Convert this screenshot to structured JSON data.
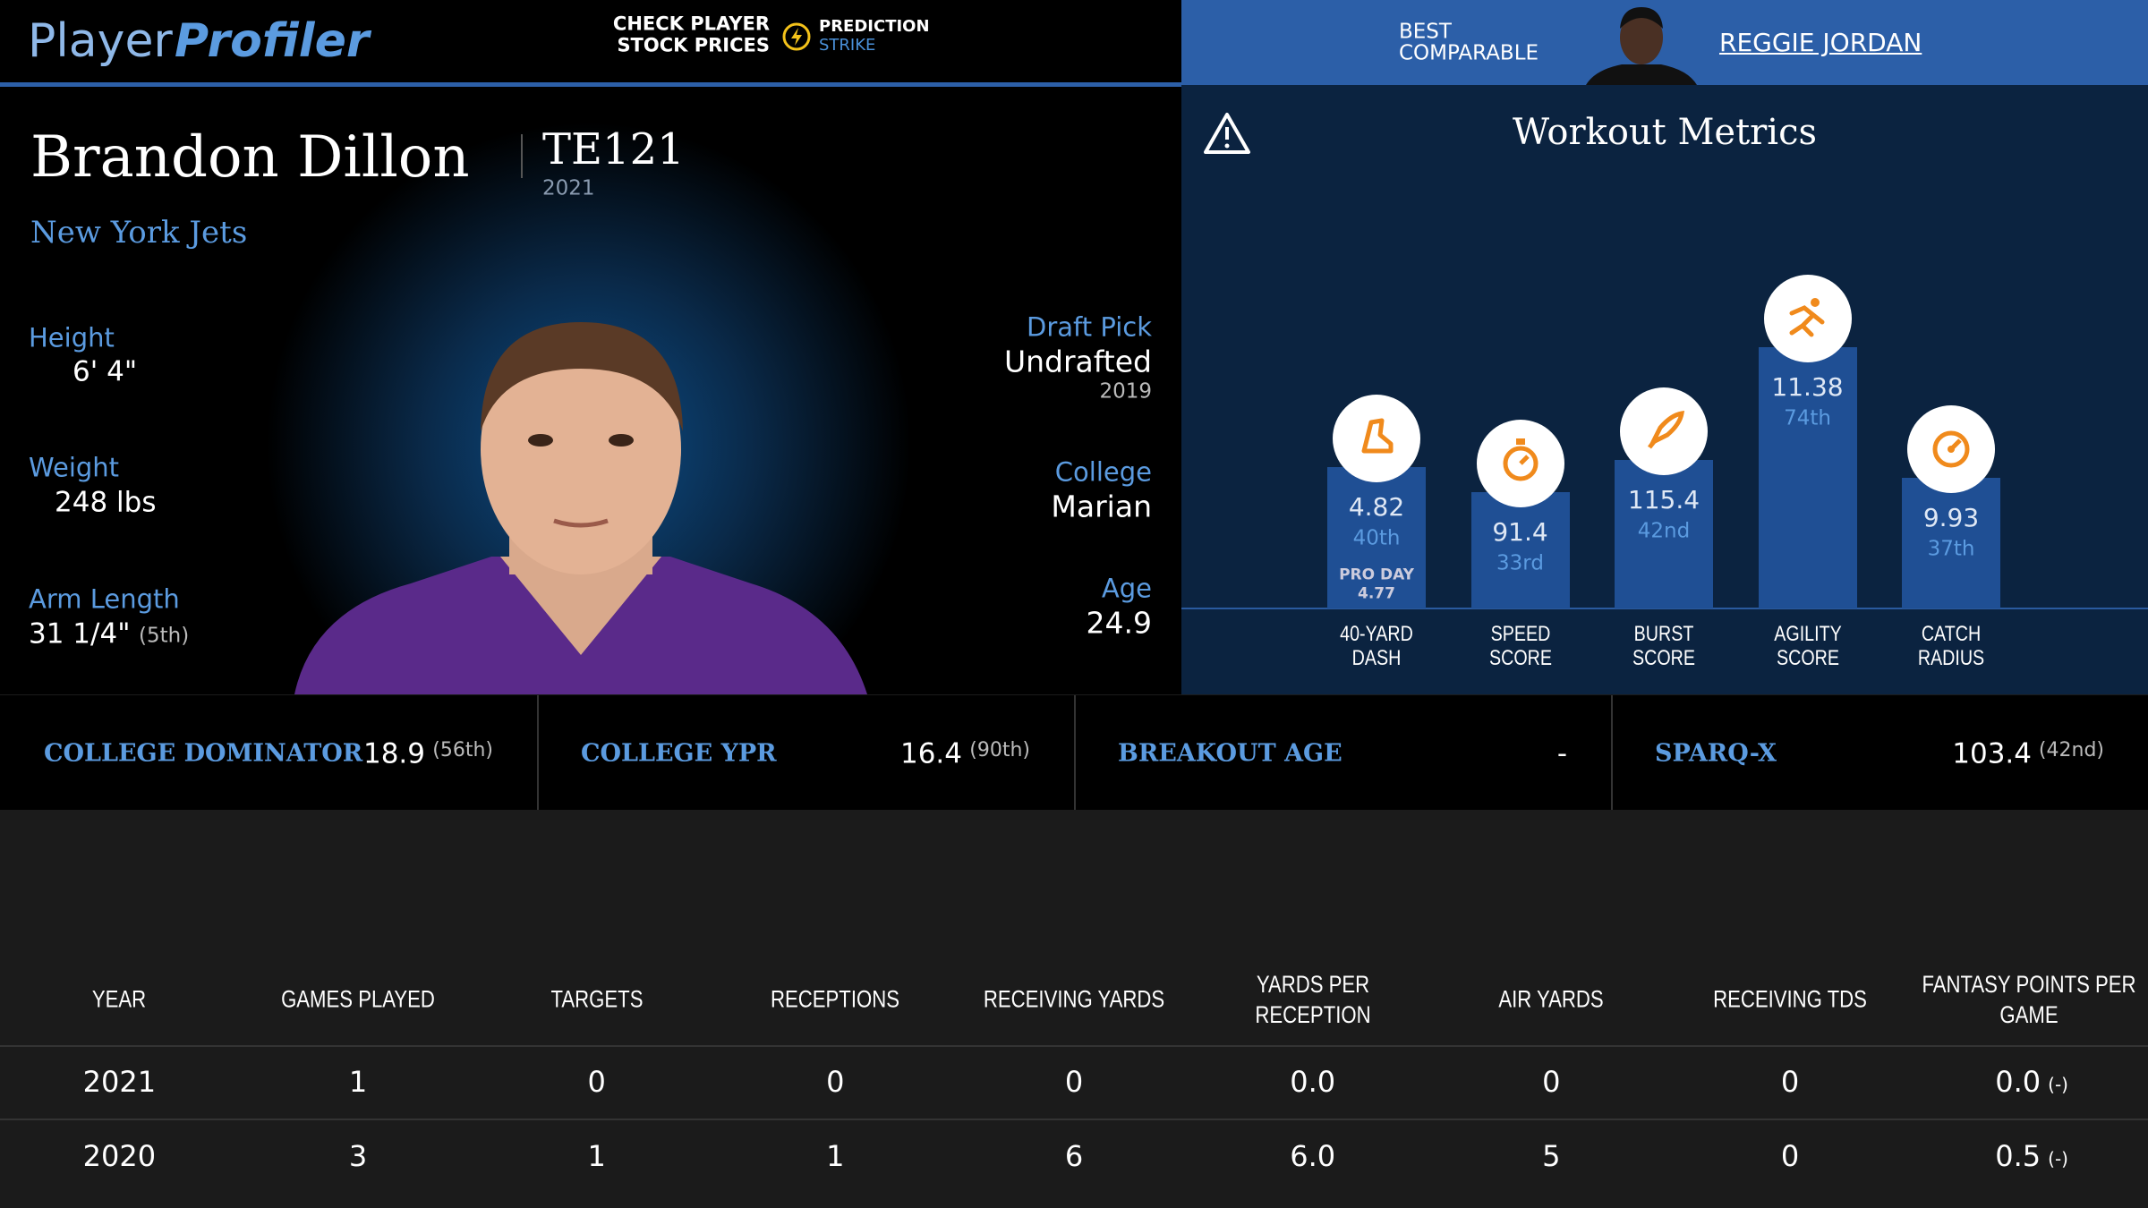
{
  "header": {
    "logo_player": "Player",
    "logo_profiler": "Profiler",
    "promo_line1": "CHECK PLAYER",
    "promo_line2": "STOCK PRICES",
    "promo_brand": "PREDICTION",
    "promo_sub": "STRIKE",
    "comparable_label_1": "BEST",
    "comparable_label_2": "COMPARABLE",
    "comparable_name": "REGGIE JORDAN"
  },
  "player": {
    "name": "Brandon Dillon",
    "position_rank": "TE121",
    "year": "2021",
    "team": "New York Jets",
    "bio_left": [
      {
        "label": "Height",
        "value": "6' 4\""
      },
      {
        "label": "Weight",
        "value": "248 lbs"
      },
      {
        "label": "Arm Length",
        "value": "31 1/4\"",
        "note": "(5th)"
      }
    ],
    "bio_right": [
      {
        "label": "Draft Pick",
        "value": "Undrafted",
        "note": "2019"
      },
      {
        "label": "College",
        "value": "Marian"
      },
      {
        "label": "Age",
        "value": "24.9"
      }
    ]
  },
  "workout": {
    "title": "Workout Metrics",
    "metrics": [
      {
        "name_1": "40-YARD",
        "name_2": "DASH",
        "value": "4.82",
        "rank": {
          "value": 40,
          "label": "40th"
        },
        "extra_label": "PRO DAY",
        "extra_value": "4.77"
      },
      {
        "name_1": "SPEED",
        "name_2": "SCORE",
        "value": "91.4",
        "rank": {
          "value": 33,
          "label": "33rd"
        }
      },
      {
        "name_1": "BURST",
        "name_2": "SCORE",
        "value": "115.4",
        "rank": {
          "value": 42,
          "label": "42nd"
        }
      },
      {
        "name_1": "AGILITY",
        "name_2": "SCORE",
        "value": "11.38",
        "rank": {
          "value": 74,
          "label": "74th"
        }
      },
      {
        "name_1": "CATCH",
        "name_2": "RADIUS",
        "value": "9.93",
        "rank": {
          "value": 37,
          "label": "37th"
        }
      }
    ]
  },
  "stats": [
    {
      "label": "COLLEGE DOMINATOR",
      "value": "18.9",
      "rank": "(56th)"
    },
    {
      "label": "COLLEGE YPR",
      "value": "16.4",
      "rank": "(90th)"
    },
    {
      "label": "BREAKOUT AGE",
      "value": "-"
    },
    {
      "label": "SPARQ-X",
      "value": "103.4",
      "rank": "(42nd)"
    }
  ],
  "table": {
    "columns": [
      "YEAR",
      "GAMES PLAYED",
      "TARGETS",
      "RECEPTIONS",
      "RECEIVING YARDS",
      "YARDS PER RECEPTION",
      "AIR YARDS",
      "RECEIVING TDS",
      "FANTASY POINTS PER GAME"
    ],
    "rows": [
      {
        "cells": [
          "2021",
          "1",
          "0",
          "0",
          "0",
          "0.0",
          "0",
          "0"
        ],
        "fantasy": "0.0",
        "fantasy_note": "(-)"
      },
      {
        "cells": [
          "2020",
          "3",
          "1",
          "1",
          "6",
          "6.0",
          "5",
          "0"
        ],
        "fantasy": "0.5",
        "fantasy_note": "(-)"
      }
    ]
  }
}
